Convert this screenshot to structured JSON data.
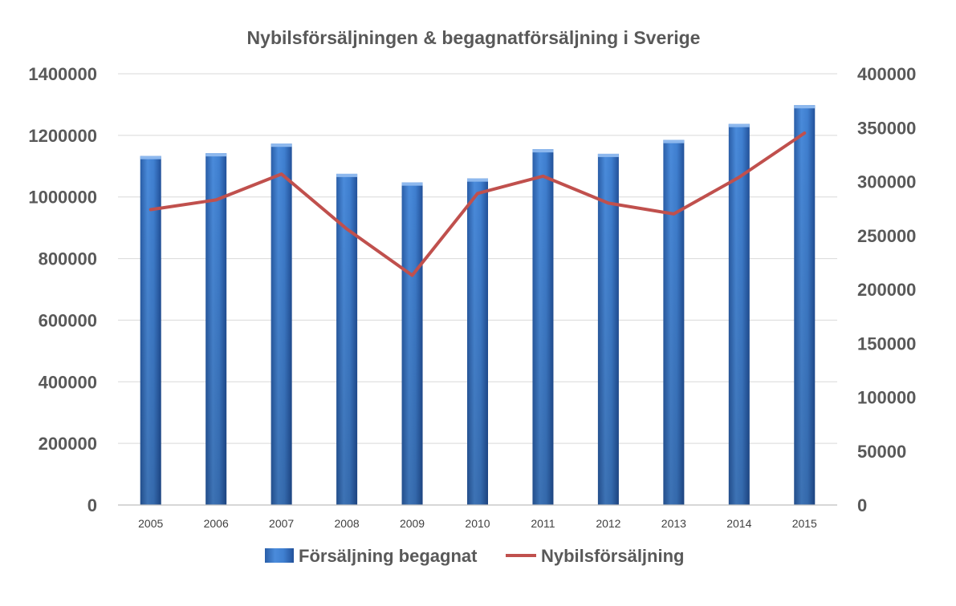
{
  "chart_data": {
    "type": "bar",
    "title": "Nybilsförsäljningen & begagnatförsäljning i Sverige",
    "categories": [
      "2005",
      "2006",
      "2007",
      "2008",
      "2009",
      "2010",
      "2011",
      "2012",
      "2013",
      "2014",
      "2015"
    ],
    "y_left": {
      "lim": [
        0,
        1400000
      ],
      "ticks": [
        "0",
        "200000",
        "400000",
        "600000",
        "800000",
        "1000000",
        "1200000",
        "1400000"
      ]
    },
    "y_right": {
      "lim": [
        0,
        400000
      ],
      "ticks": [
        "0",
        "50000",
        "100000",
        "150000",
        "200000",
        "250000",
        "300000",
        "350000",
        "400000"
      ]
    },
    "grid": true,
    "legend_position": "bottom",
    "series": [
      {
        "name": "Försäljning begagnat",
        "type": "bar",
        "axis": "left",
        "color": "#3A78C8",
        "values": [
          1133000,
          1142000,
          1173000,
          1075000,
          1047000,
          1060000,
          1155000,
          1140000,
          1185000,
          1237000,
          1298000
        ]
      },
      {
        "name": "Nybilsförsäljning",
        "type": "line",
        "axis": "right",
        "color": "#C0504D",
        "values": [
          274000,
          283000,
          307000,
          256000,
          213000,
          289000,
          305000,
          280000,
          270000,
          304000,
          345000
        ]
      }
    ]
  }
}
